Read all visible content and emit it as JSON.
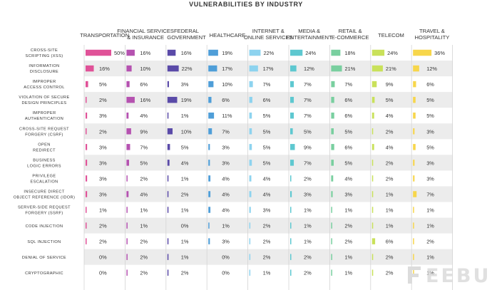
{
  "title": "VULNERABILITIES BY INDUSTRY",
  "watermark": "EEBUF",
  "chart_data": {
    "type": "table",
    "title": "VULNERABILITIES BY INDUSTRY",
    "columns": [
      {
        "label": [
          "TRANSPORTATION"
        ],
        "color": "#e05298"
      },
      {
        "label": [
          "FINANCIAL SERVICES",
          "& INSURANCE"
        ],
        "color": "#b552b0"
      },
      {
        "label": [
          "FEDERAL",
          "GOVERNMENT"
        ],
        "color": "#5a4aa8"
      },
      {
        "label": [
          "HEALTHCARE"
        ],
        "color": "#4f9ed8"
      },
      {
        "label": [
          "INTERNET &",
          "ONLINE SERVICES"
        ],
        "color": "#8dd3ef"
      },
      {
        "label": [
          "MEDIA &",
          "ENTERTAINMENT"
        ],
        "color": "#5ec8d0"
      },
      {
        "label": [
          "RETAIL &",
          "E-COMMERCE"
        ],
        "color": "#79cf9f"
      },
      {
        "label": [
          "TELECOM"
        ],
        "color": "#c9e15a"
      },
      {
        "label": [
          "TRAVEL &",
          "HOSPITALITY"
        ],
        "color": "#f7d64b"
      }
    ],
    "rows": [
      {
        "label": [
          "CROSS-SITE",
          "SCRIPTING (XSS)"
        ],
        "values": [
          50,
          16,
          16,
          19,
          22,
          24,
          18,
          24,
          36
        ]
      },
      {
        "label": [
          "INFORMATION",
          "DISCLOSURE"
        ],
        "values": [
          16,
          10,
          22,
          17,
          17,
          12,
          21,
          21,
          12
        ]
      },
      {
        "label": [
          "IMPROPER",
          "ACCESS CONTROL"
        ],
        "values": [
          5,
          6,
          3,
          10,
          7,
          7,
          7,
          9,
          6
        ]
      },
      {
        "label": [
          "VIOLATION OF SECURE",
          "DESIGN PRINCIPLES"
        ],
        "values": [
          2,
          16,
          19,
          6,
          6,
          7,
          6,
          5,
          5
        ]
      },
      {
        "label": [
          "IMPROPER",
          "AUTHENTICATION"
        ],
        "values": [
          3,
          4,
          1,
          11,
          5,
          7,
          6,
          4,
          5
        ]
      },
      {
        "label": [
          "CROSS-SITE REQUEST",
          "FORGERY (CSRF)"
        ],
        "values": [
          2,
          9,
          10,
          7,
          5,
          5,
          5,
          2,
          3
        ]
      },
      {
        "label": [
          "OPEN",
          "REDIRECT"
        ],
        "values": [
          3,
          7,
          5,
          3,
          5,
          9,
          6,
          4,
          5
        ]
      },
      {
        "label": [
          "BUSINESS",
          "LOGIC ERRORS"
        ],
        "values": [
          3,
          5,
          4,
          3,
          5,
          7,
          5,
          2,
          3
        ]
      },
      {
        "label": [
          "PRIVILEGE",
          "ESCALATION"
        ],
        "values": [
          3,
          2,
          1,
          4,
          4,
          2,
          4,
          2,
          3
        ]
      },
      {
        "label": [
          "INSECURE DIRECT",
          "OBJECT REFERENCE (IDOR)"
        ],
        "values": [
          3,
          4,
          2,
          4,
          4,
          3,
          3,
          1,
          7
        ]
      },
      {
        "label": [
          "SERVER-SIDE REQUEST",
          "FORGERY (SSRF)"
        ],
        "values": [
          1,
          1,
          1,
          4,
          3,
          1,
          1,
          1,
          1
        ]
      },
      {
        "label": [
          "CODE INJECTION"
        ],
        "values": [
          2,
          1,
          0,
          1,
          2,
          1,
          2,
          1,
          1
        ]
      },
      {
        "label": [
          "SQL INJECTION"
        ],
        "values": [
          2,
          2,
          1,
          3,
          2,
          1,
          2,
          6,
          2
        ]
      },
      {
        "label": [
          "DENIAL OF SERVICE"
        ],
        "values": [
          0,
          2,
          1,
          0,
          2,
          2,
          1,
          2,
          1
        ]
      },
      {
        "label": [
          "CRYPTOGRAPHIC"
        ],
        "values": [
          0,
          2,
          2,
          0,
          1,
          2,
          1,
          2,
          1
        ]
      }
    ],
    "value_suffix": "%"
  }
}
